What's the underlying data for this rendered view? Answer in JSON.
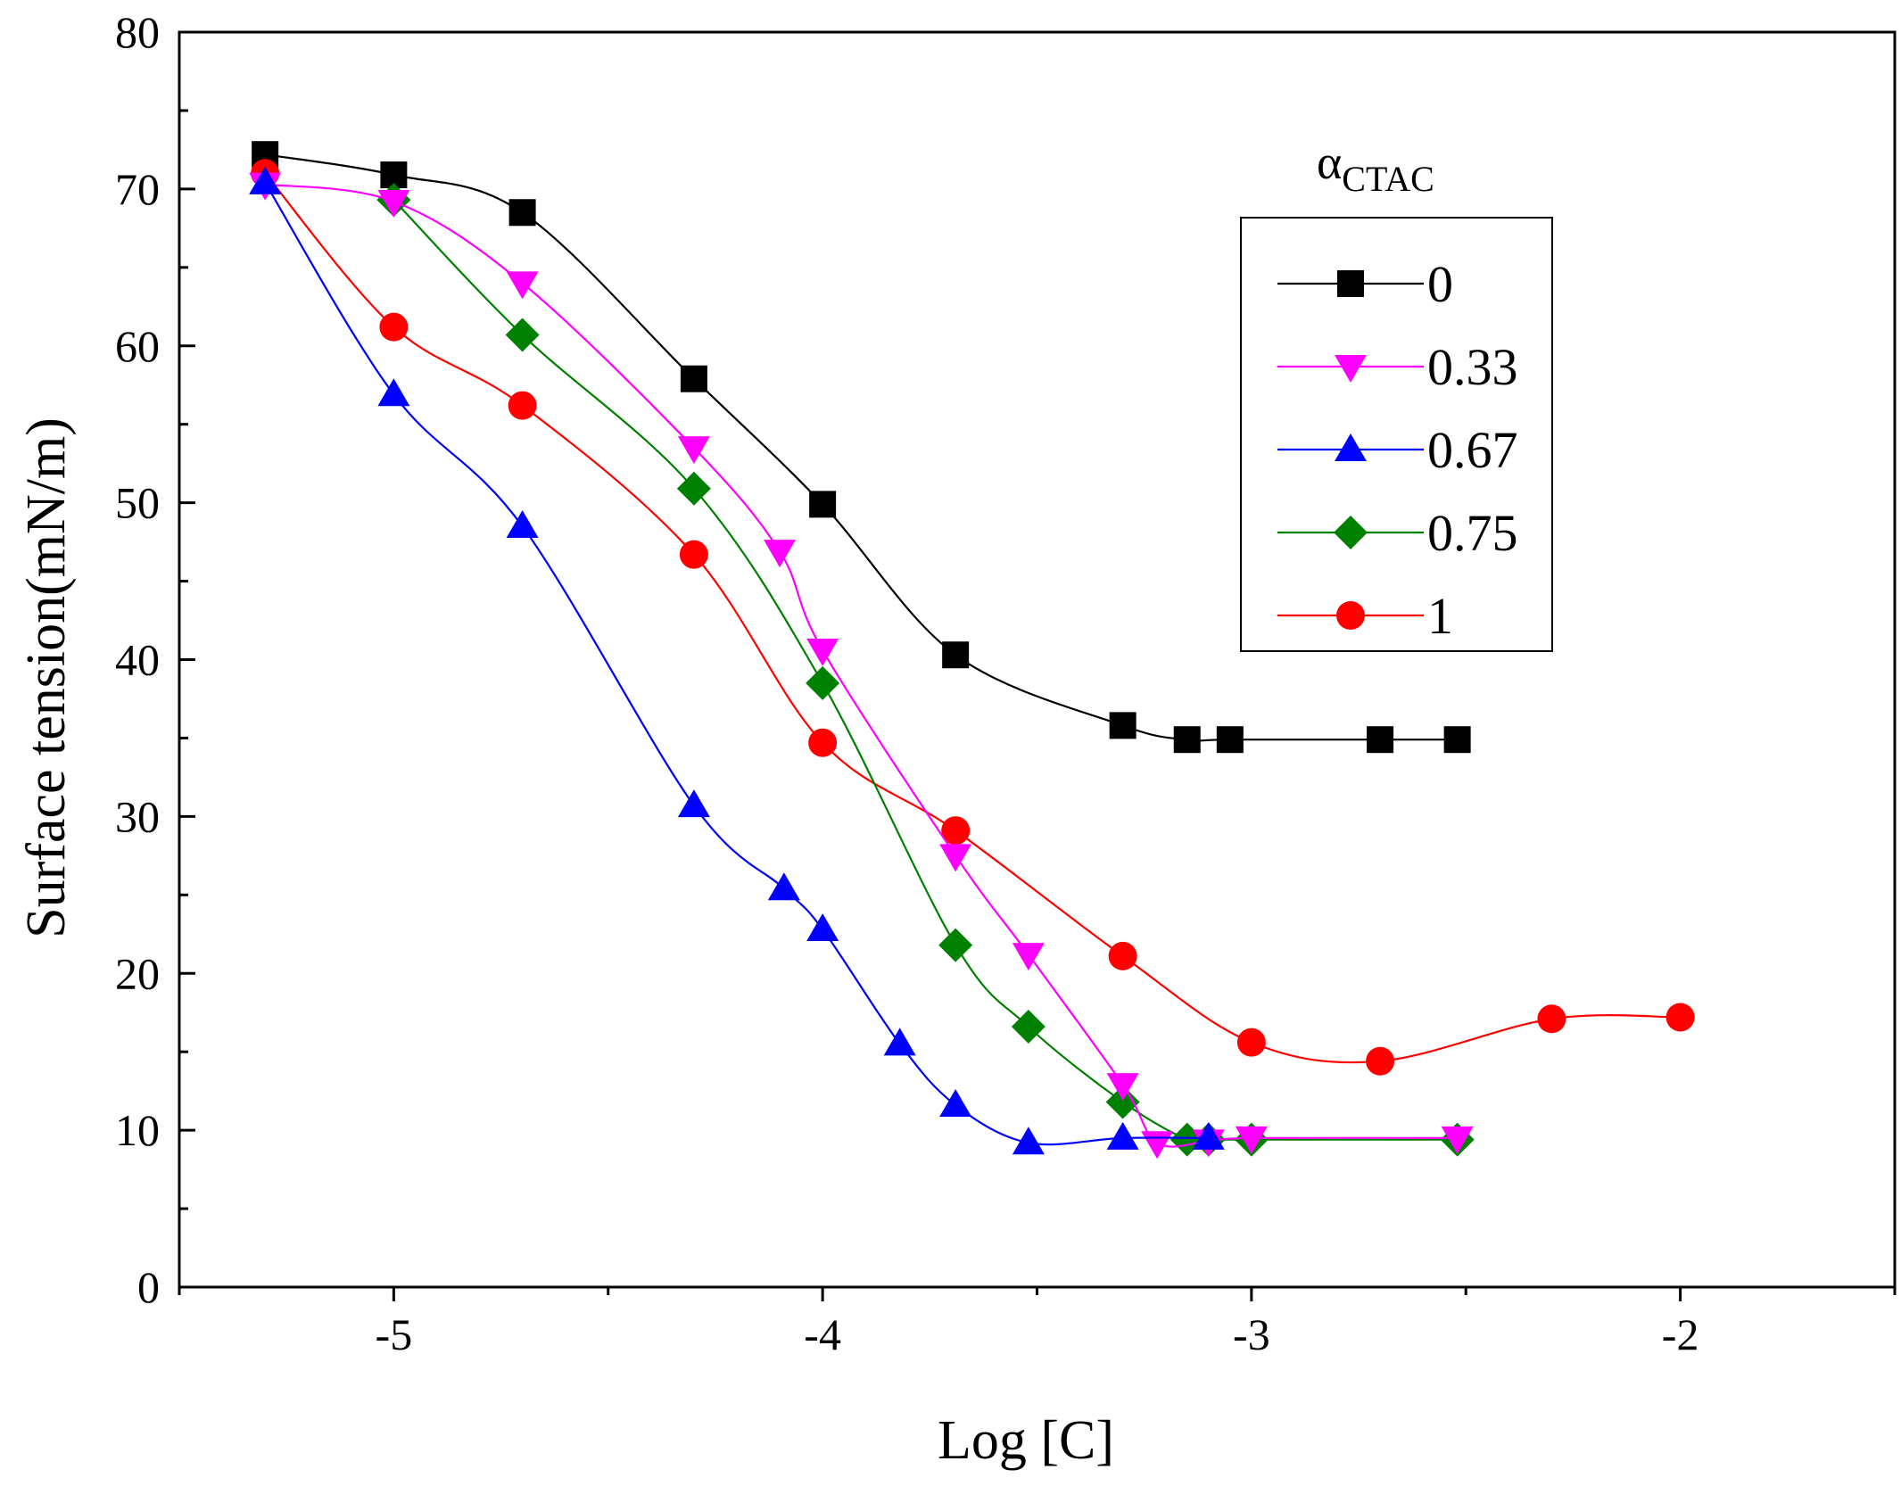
{
  "chart_data": {
    "type": "line",
    "title": "",
    "xlabel": "Log [C]",
    "ylabel": "Surface tension(mN/m)",
    "xlim": [
      -5.5,
      -1.5
    ],
    "ylim": [
      0,
      80
    ],
    "xticks": [
      -5,
      -4,
      -3,
      -2
    ],
    "xtick_labels": [
      "-5",
      "-4",
      "-3",
      "-2"
    ],
    "yticks": [
      0,
      10,
      20,
      30,
      40,
      50,
      60,
      70,
      80
    ],
    "ytick_labels": [
      "0",
      "10",
      "20",
      "30",
      "40",
      "50",
      "60",
      "70",
      "80"
    ],
    "legend": {
      "title_main": "α",
      "title_sub": "CTAC",
      "placement": "right"
    },
    "series": [
      {
        "name": "0",
        "color": "#000000",
        "marker": "square",
        "x": [
          -5.3,
          -5.0,
          -4.7,
          -4.3,
          -4.0,
          -3.69,
          -3.3,
          -3.15,
          -3.05,
          -2.7,
          -2.52
        ],
        "y": [
          72.2,
          70.9,
          68.5,
          57.9,
          49.9,
          40.3,
          35.8,
          34.9,
          34.9,
          34.9,
          34.9
        ]
      },
      {
        "name": "0.33",
        "color": "#ff00ff",
        "marker": "triangle-down",
        "x": [
          -5.3,
          -5.0,
          -4.7,
          -4.3,
          -4.1,
          -4.0,
          -3.69,
          -3.52,
          -3.3,
          -3.22,
          -3.1,
          -3.0,
          -2.52
        ],
        "y": [
          70.3,
          69.2,
          64.0,
          53.5,
          46.9,
          40.6,
          27.5,
          21.2,
          12.9,
          9.2,
          9.3,
          9.5,
          9.5
        ]
      },
      {
        "name": "0.67",
        "color": "#0000ff",
        "marker": "triangle-up",
        "x": [
          -5.3,
          -5.0,
          -4.7,
          -4.3,
          -4.09,
          -4.0,
          -3.82,
          -3.69,
          -3.52,
          -3.3,
          -3.1
        ],
        "y": [
          70.4,
          56.9,
          48.5,
          30.7,
          25.4,
          22.8,
          15.5,
          11.6,
          9.2,
          9.5,
          9.5
        ]
      },
      {
        "name": "0.75",
        "color": "#008000",
        "marker": "diamond",
        "x": [
          -5.0,
          -4.7,
          -4.3,
          -4.0,
          -3.69,
          -3.52,
          -3.3,
          -3.15,
          -3.1,
          -3.0,
          -2.52
        ],
        "y": [
          69.3,
          60.7,
          50.9,
          38.5,
          21.8,
          16.6,
          11.8,
          9.4,
          9.4,
          9.4,
          9.4
        ]
      },
      {
        "name": "1",
        "color": "#ff0000",
        "marker": "circle",
        "x": [
          -5.3,
          -5.0,
          -4.7,
          -4.3,
          -4.0,
          -3.69,
          -3.3,
          -3.0,
          -2.7,
          -2.3,
          -2.0
        ],
        "y": [
          71.0,
          61.2,
          56.2,
          46.7,
          34.7,
          29.1,
          21.1,
          15.6,
          14.4,
          17.1,
          17.2
        ]
      }
    ]
  }
}
